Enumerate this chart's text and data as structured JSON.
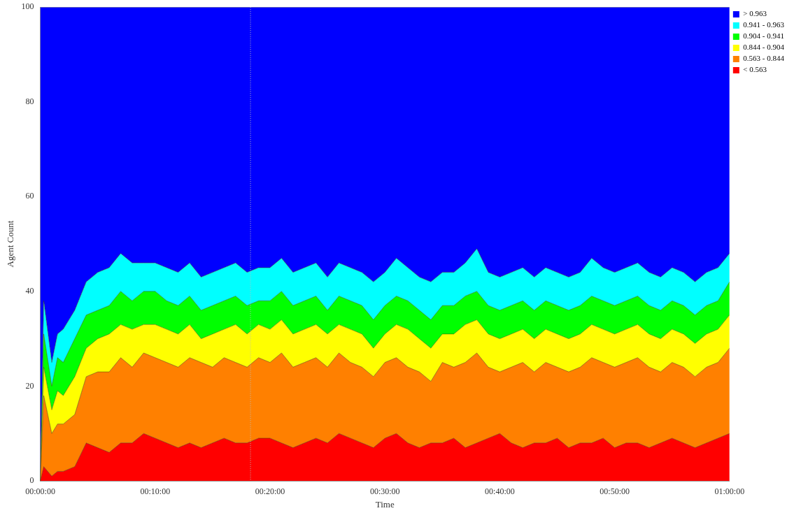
{
  "chart_data": {
    "type": "area",
    "stacked": true,
    "xlabel": "Time",
    "ylabel": "Agent Count",
    "x": [
      0,
      0.3,
      1,
      1.5,
      2,
      3,
      4,
      5,
      6,
      7,
      8,
      9,
      10,
      11,
      12,
      13,
      14,
      15,
      16,
      17,
      18,
      19,
      20,
      21,
      22,
      23,
      24,
      25,
      26,
      27,
      28,
      29,
      30,
      31,
      32,
      33,
      34,
      35,
      36,
      37,
      38,
      39,
      40,
      41,
      42,
      43,
      44,
      45,
      46,
      47,
      48,
      49,
      50,
      51,
      52,
      53,
      54,
      55,
      56,
      57,
      58,
      59,
      60
    ],
    "xlim": [
      0,
      60
    ],
    "xticks": [
      {
        "value": 0,
        "label": "00:00:00"
      },
      {
        "value": 10,
        "label": "00:10:00"
      },
      {
        "value": 20,
        "label": "00:20:00"
      },
      {
        "value": 30,
        "label": "00:30:00"
      },
      {
        "value": 40,
        "label": "00:40:00"
      },
      {
        "value": 50,
        "label": "00:50:00"
      },
      {
        "value": 60,
        "label": "01:00:00"
      }
    ],
    "ylim": [
      0,
      100
    ],
    "yticks": [
      0,
      20,
      40,
      60,
      80,
      100
    ],
    "grid": false,
    "legend": "top right",
    "ref_lines": [
      {
        "axis": "x",
        "value": 18.3,
        "color": "#bbbbbb",
        "line_style": "dotted"
      }
    ],
    "series": [
      {
        "name": "< 0.563",
        "color": "#ff0000",
        "values": [
          0,
          3,
          1,
          2,
          2,
          3,
          8,
          7,
          6,
          8,
          8,
          10,
          9,
          8,
          7,
          8,
          7,
          8,
          9,
          8,
          8,
          9,
          9,
          8,
          7,
          8,
          9,
          8,
          10,
          9,
          8,
          7,
          9,
          10,
          8,
          7,
          8,
          8,
          9,
          7,
          8,
          9,
          10,
          8,
          7,
          8,
          8,
          9,
          7,
          8,
          8,
          9,
          7,
          8,
          8,
          7,
          8,
          9,
          8,
          7,
          8,
          9,
          10
        ]
      },
      {
        "name": "0.563 - 0.844",
        "color": "#ff8000",
        "values": [
          0,
          15,
          9,
          10,
          10,
          11,
          14,
          16,
          17,
          18,
          16,
          17,
          17,
          17,
          17,
          18,
          18,
          16,
          17,
          17,
          16,
          17,
          16,
          19,
          17,
          17,
          17,
          16,
          17,
          16,
          16,
          15,
          16,
          16,
          16,
          16,
          13,
          17,
          15,
          18,
          19,
          15,
          13,
          16,
          18,
          15,
          17,
          15,
          16,
          16,
          18,
          16,
          17,
          17,
          18,
          17,
          15,
          16,
          16,
          15,
          16,
          16,
          18
        ]
      },
      {
        "name": "0.844 - 0.904",
        "color": "#ffff00",
        "values": [
          0,
          6,
          5,
          7,
          6,
          8,
          6,
          7,
          8,
          7,
          8,
          6,
          7,
          7,
          7,
          7,
          5,
          7,
          6,
          8,
          7,
          7,
          7,
          7,
          7,
          7,
          7,
          7,
          6,
          7,
          7,
          6,
          6,
          7,
          8,
          7,
          7,
          6,
          7,
          8,
          7,
          7,
          7,
          7,
          7,
          7,
          7,
          7,
          7,
          7,
          7,
          7,
          7,
          7,
          7,
          7,
          7,
          7,
          7,
          7,
          7,
          7,
          7
        ]
      },
      {
        "name": "0.904 - 0.941",
        "color": "#00ff00",
        "values": [
          0,
          7,
          5,
          7,
          7,
          8,
          7,
          6,
          6,
          7,
          6,
          7,
          7,
          6,
          6,
          6,
          6,
          6,
          6,
          6,
          6,
          5,
          6,
          6,
          6,
          6,
          6,
          5,
          6,
          6,
          6,
          6,
          6,
          6,
          6,
          6,
          6,
          6,
          6,
          6,
          6,
          6,
          6,
          6,
          6,
          6,
          6,
          6,
          6,
          6,
          6,
          6,
          6,
          6,
          6,
          6,
          6,
          6,
          6,
          6,
          6,
          6,
          7
        ]
      },
      {
        "name": "0.941 - 0.963",
        "color": "#00ffff",
        "values": [
          0,
          7,
          5,
          5,
          7,
          6,
          7,
          8,
          8,
          8,
          8,
          6,
          6,
          7,
          7,
          7,
          7,
          7,
          7,
          7,
          7,
          7,
          7,
          7,
          7,
          7,
          7,
          7,
          7,
          7,
          7,
          8,
          7,
          8,
          7,
          7,
          8,
          7,
          7,
          7,
          9,
          7,
          7,
          7,
          7,
          7,
          7,
          7,
          7,
          7,
          8,
          7,
          7,
          7,
          7,
          7,
          7,
          7,
          7,
          7,
          7,
          7,
          6
        ]
      },
      {
        "name": "> 0.963",
        "color": "#0000ff",
        "values": [
          100,
          62,
          75,
          69,
          68,
          64,
          58,
          56,
          55,
          52,
          54,
          54,
          54,
          55,
          56,
          54,
          57,
          56,
          55,
          54,
          56,
          55,
          55,
          53,
          56,
          55,
          54,
          57,
          54,
          55,
          56,
          58,
          56,
          53,
          55,
          57,
          58,
          56,
          56,
          54,
          51,
          56,
          57,
          56,
          55,
          57,
          55,
          56,
          57,
          56,
          53,
          55,
          56,
          55,
          54,
          56,
          57,
          55,
          56,
          58,
          56,
          55,
          52
        ]
      }
    ]
  }
}
